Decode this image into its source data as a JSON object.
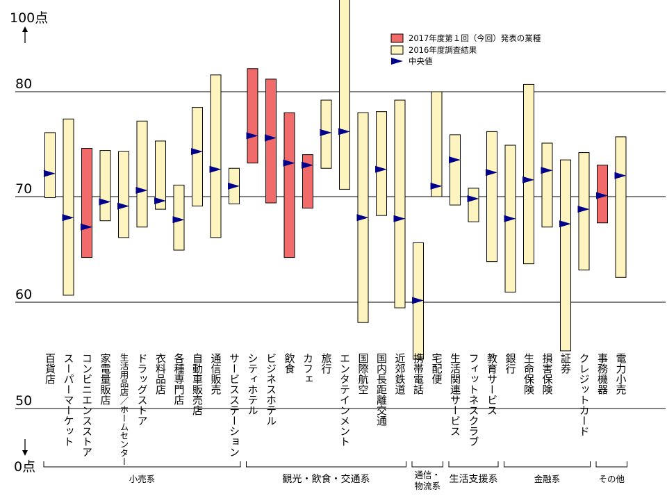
{
  "chart_data": {
    "type": "range_bar",
    "y_axis_labels": {
      "top": "100点",
      "bottom": "0点"
    },
    "y_ticks": [
      80,
      70,
      60,
      50
    ],
    "ylim_display": [
      55,
      90
    ],
    "legend": [
      {
        "label": "2017年度第１回（今回）発表の業種",
        "color": "#f26b6b"
      },
      {
        "label": "2016年度調査結果",
        "color": "#fdf4c0"
      },
      {
        "label": "中央値",
        "marker": "triangle",
        "color": "#00008b"
      }
    ],
    "groups": [
      {
        "label": "小売系",
        "from": 0,
        "to": 10
      },
      {
        "label": "観光・飲食・交通系",
        "from": 11,
        "to": 19
      },
      {
        "label": "通信・\n物流系",
        "from": 20,
        "to": 21
      },
      {
        "label": "生活支援系",
        "from": 22,
        "to": 24
      },
      {
        "label": "金融系",
        "from": 25,
        "to": 29
      },
      {
        "label": "その他",
        "from": 30,
        "to": 31
      }
    ],
    "categories": [
      {
        "label": "百貨店",
        "low": 69.9,
        "high": 76.1,
        "median": 72.2,
        "current": false
      },
      {
        "label": "スーパーマーケット",
        "low": 60.6,
        "high": 77.4,
        "median": 68.0,
        "current": false
      },
      {
        "label": "コンビニエンスストア",
        "low": 64.2,
        "high": 74.6,
        "median": 67.1,
        "current": true
      },
      {
        "label": "家電量販店",
        "low": 67.7,
        "high": 74.4,
        "median": 69.5,
        "current": false
      },
      {
        "label": "生活用品店／ホームセンター",
        "low": 66.1,
        "high": 74.3,
        "median": 69.1,
        "current": false
      },
      {
        "label": "ドラッグストア",
        "low": 67.1,
        "high": 77.2,
        "median": 70.6,
        "current": false
      },
      {
        "label": "衣料品店",
        "low": 68.8,
        "high": 75.3,
        "median": 69.6,
        "current": false
      },
      {
        "label": "各種専門店",
        "low": 64.9,
        "high": 71.1,
        "median": 67.8,
        "current": false
      },
      {
        "label": "自動車販売店",
        "low": 69.1,
        "high": 78.5,
        "median": 74.3,
        "current": false
      },
      {
        "label": "通信販売",
        "low": 66.1,
        "high": 81.6,
        "median": 72.6,
        "current": false
      },
      {
        "label": "サービスステーション",
        "low": 69.3,
        "high": 72.7,
        "median": 71.0,
        "current": false
      },
      {
        "label": "シティホテル",
        "low": 73.2,
        "high": 82.2,
        "median": 75.8,
        "current": true
      },
      {
        "label": "ビジネスホテル",
        "low": 69.4,
        "high": 81.2,
        "median": 75.6,
        "current": true
      },
      {
        "label": "飲食",
        "low": 64.2,
        "high": 78.0,
        "median": 73.2,
        "current": true
      },
      {
        "label": "カフェ",
        "low": 68.9,
        "high": 74.0,
        "median": 73.0,
        "current": true
      },
      {
        "label": "旅行",
        "low": 72.7,
        "high": 79.2,
        "median": 76.1,
        "current": false
      },
      {
        "label": "エンタテインメント",
        "low": 70.7,
        "high": 90.0,
        "median": 76.2,
        "current": false
      },
      {
        "label": "国際航空",
        "low": 58.0,
        "high": 78.0,
        "median": 68.0,
        "current": false
      },
      {
        "label": "国内長距離交通",
        "low": 68.2,
        "high": 78.1,
        "median": 72.6,
        "current": false
      },
      {
        "label": "近郊鉄道",
        "low": 59.4,
        "high": 79.2,
        "median": 67.9,
        "current": false
      },
      {
        "label": "携帯電話",
        "low": 54.5,
        "high": 65.6,
        "median": 60.1,
        "current": false
      },
      {
        "label": "宅配便",
        "low": 70.0,
        "high": 80.0,
        "median": 71.0,
        "current": false
      },
      {
        "label": "生活関連サービス",
        "low": 69.2,
        "high": 75.9,
        "median": 73.5,
        "current": false
      },
      {
        "label": "フィットネスクラブ",
        "low": 67.6,
        "high": 70.8,
        "median": 69.8,
        "current": false
      },
      {
        "label": "教育サービス",
        "low": 63.8,
        "high": 76.2,
        "median": 72.3,
        "current": false
      },
      {
        "label": "銀行",
        "low": 60.9,
        "high": 74.9,
        "median": 67.9,
        "current": false
      },
      {
        "label": "生命保険",
        "low": 63.6,
        "high": 80.7,
        "median": 71.6,
        "current": false
      },
      {
        "label": "損害保険",
        "low": 67.1,
        "high": 75.1,
        "median": 72.5,
        "current": false
      },
      {
        "label": "証券",
        "low": 55.3,
        "high": 73.5,
        "median": 67.4,
        "current": false
      },
      {
        "label": "クレジットカード",
        "low": 63.0,
        "high": 74.2,
        "median": 68.8,
        "current": false
      },
      {
        "label": "事務機器",
        "low": 67.5,
        "high": 73.0,
        "median": 70.1,
        "current": true
      },
      {
        "label": "電力小売",
        "low": 62.3,
        "high": 75.7,
        "median": 72.0,
        "current": false
      }
    ]
  }
}
